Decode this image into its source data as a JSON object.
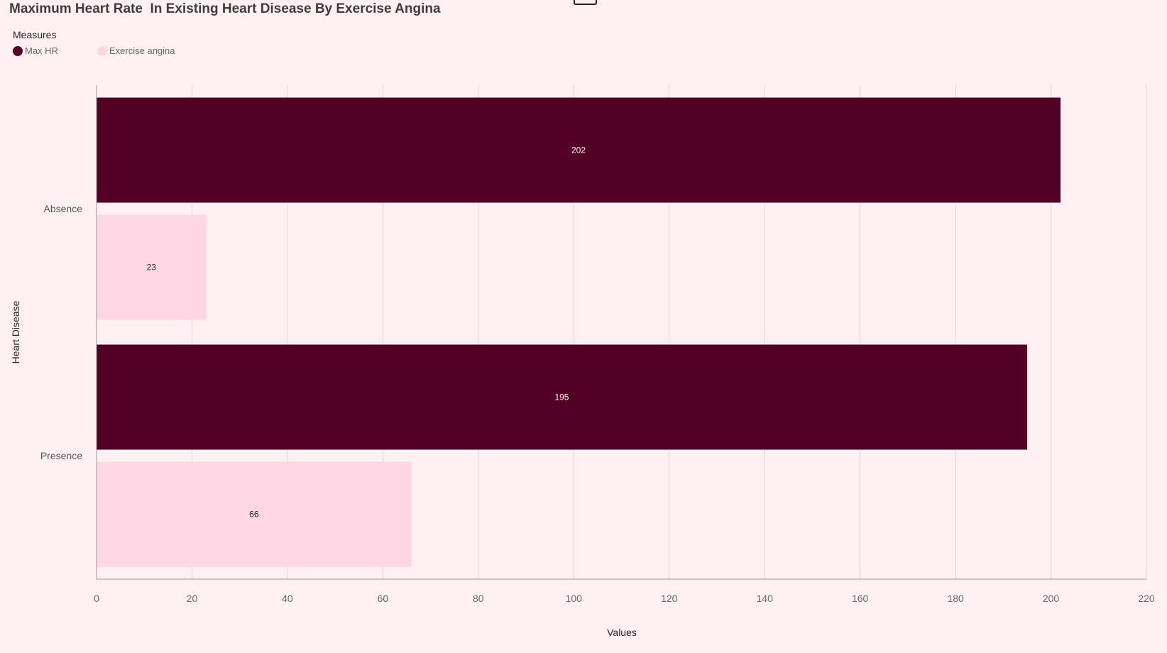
{
  "chart_data": {
    "type": "bar",
    "orientation": "horizontal",
    "title": "Maximum Heart Rate  In Existing Heart Disease By Exercise Angina",
    "legend_title": "Measures",
    "legend_position": "top-left",
    "categories": [
      "Absence",
      "Presence"
    ],
    "series": [
      {
        "name": "Max HR",
        "values": [
          202,
          195
        ],
        "color": "#520023",
        "label_color": "#ffffff"
      },
      {
        "name": "Exercise angina",
        "values": [
          23,
          66
        ],
        "color": "#ffd6e4",
        "label_color": "#222222"
      }
    ],
    "xlabel": "Values",
    "ylabel": "Heart Disease",
    "xlim": [
      0,
      220
    ],
    "xticks": [
      0,
      20,
      40,
      60,
      80,
      100,
      120,
      140,
      160,
      180,
      200,
      220
    ],
    "grid": true
  }
}
